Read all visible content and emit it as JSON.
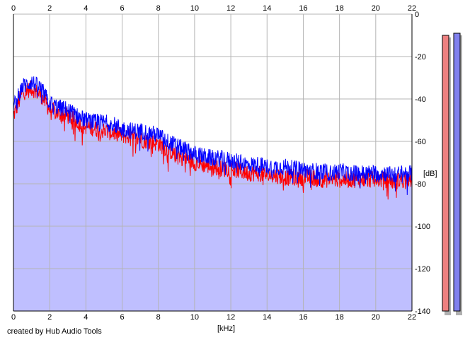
{
  "chart_data": {
    "type": "line",
    "title": "",
    "xlabel": "[kHz]",
    "ylabel": "[dB]",
    "xlim": [
      0,
      22
    ],
    "ylim": [
      -140,
      0
    ],
    "x_ticks": [
      0,
      2,
      4,
      6,
      8,
      10,
      12,
      14,
      16,
      18,
      20,
      22
    ],
    "x_tick_labels": [
      "0",
      "2",
      "4",
      "6",
      "8",
      "10",
      "12",
      "14",
      "16",
      "18",
      "20",
      "22"
    ],
    "y_ticks": [
      0,
      -20,
      -40,
      -60,
      -80,
      -100,
      -120,
      -140
    ],
    "y_tick_labels": [
      "0",
      "-20",
      "-40",
      "-60",
      "-80",
      "-100",
      "-120",
      "-140"
    ],
    "grid": true,
    "legend": "none",
    "x": [
      0,
      0.5,
      1,
      1.5,
      2,
      2.5,
      3,
      3.5,
      4,
      4.5,
      5,
      5.5,
      6,
      6.5,
      7,
      7.5,
      8,
      8.5,
      9,
      9.5,
      10,
      10.5,
      11,
      11.5,
      12,
      12.5,
      13,
      13.5,
      14,
      14.5,
      15,
      15.5,
      16,
      16.5,
      17,
      17.5,
      18,
      18.5,
      19,
      19.5,
      20,
      20.5,
      21,
      21.5,
      22
    ],
    "series": [
      {
        "color": "#ff0000",
        "values": [
          -48,
          -37,
          -35,
          -38,
          -45,
          -47,
          -48,
          -51,
          -53,
          -54,
          -55,
          -56,
          -57,
          -58,
          -59,
          -60,
          -61,
          -64,
          -66,
          -68,
          -70,
          -71,
          -72,
          -73,
          -73,
          -74,
          -75,
          -75,
          -76,
          -76,
          -77,
          -77,
          -77,
          -77,
          -78,
          -78,
          -78,
          -78,
          -78,
          -78,
          -78,
          -78,
          -79,
          -78,
          -78
        ]
      },
      {
        "color": "#0000ff",
        "values": [
          -44,
          -34,
          -32,
          -35,
          -42,
          -44,
          -45,
          -48,
          -50,
          -51,
          -51,
          -52,
          -54,
          -55,
          -55,
          -56,
          -57,
          -60,
          -62,
          -64,
          -66,
          -67,
          -68,
          -68,
          -69,
          -70,
          -71,
          -71,
          -72,
          -72,
          -72,
          -73,
          -73,
          -74,
          -74,
          -75,
          -74,
          -75,
          -75,
          -75,
          -75,
          -75,
          -76,
          -75,
          -75
        ]
      }
    ],
    "fill_color": "#bfbfff"
  },
  "level_meters": {
    "left": {
      "color": "#ee8080",
      "level_db": -10
    },
    "right": {
      "color": "#8080ee",
      "level_db": -9
    }
  },
  "credit": "created by Hub Audio Tools"
}
